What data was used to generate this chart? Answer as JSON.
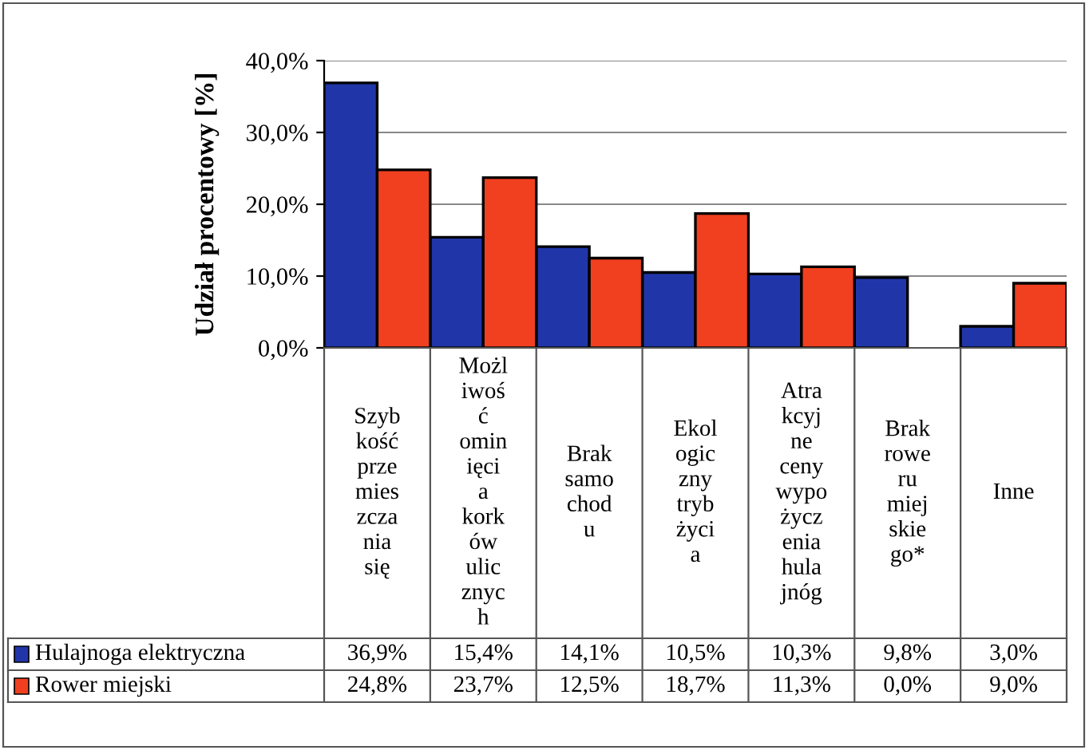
{
  "chart_data": {
    "type": "bar",
    "ylabel": "Udział procentowy [%]",
    "categories": [
      "Szybkość przemieszczania się",
      "Możliwość ominięcia korków ulicznych",
      "Brak samochodu",
      "Ekologiczny tryb życia",
      "Atrakcyjne ceny wypożyczenia hulajnóg",
      "Brak roweru miejskiego*",
      "Inne"
    ],
    "series": [
      {
        "name": "Hulajnoga elektryczna",
        "color": "#2036a8",
        "values": [
          36.9,
          15.4,
          14.1,
          10.5,
          10.3,
          9.8,
          3.0
        ],
        "value_labels": [
          "36,9%",
          "15,4%",
          "14,1%",
          "10,5%",
          "10,3%",
          "9,8%",
          "3,0%"
        ]
      },
      {
        "name": "Rower miejski",
        "color": "#f04020",
        "values": [
          24.8,
          23.7,
          12.5,
          18.7,
          11.3,
          0.0,
          9.0
        ],
        "value_labels": [
          "24,8%",
          "23,7%",
          "12,5%",
          "18,7%",
          "11,3%",
          "0,0%",
          "9,0%"
        ]
      }
    ],
    "ylim": [
      0,
      40
    ],
    "yticks": [
      {
        "value": 0,
        "label": "0,0%"
      },
      {
        "value": 10,
        "label": "10,0%"
      },
      {
        "value": 20,
        "label": "20,0%"
      },
      {
        "value": 30,
        "label": "30,0%"
      },
      {
        "value": 40,
        "label": "40,0%"
      }
    ],
    "grid": "y",
    "legend": "bottom"
  }
}
